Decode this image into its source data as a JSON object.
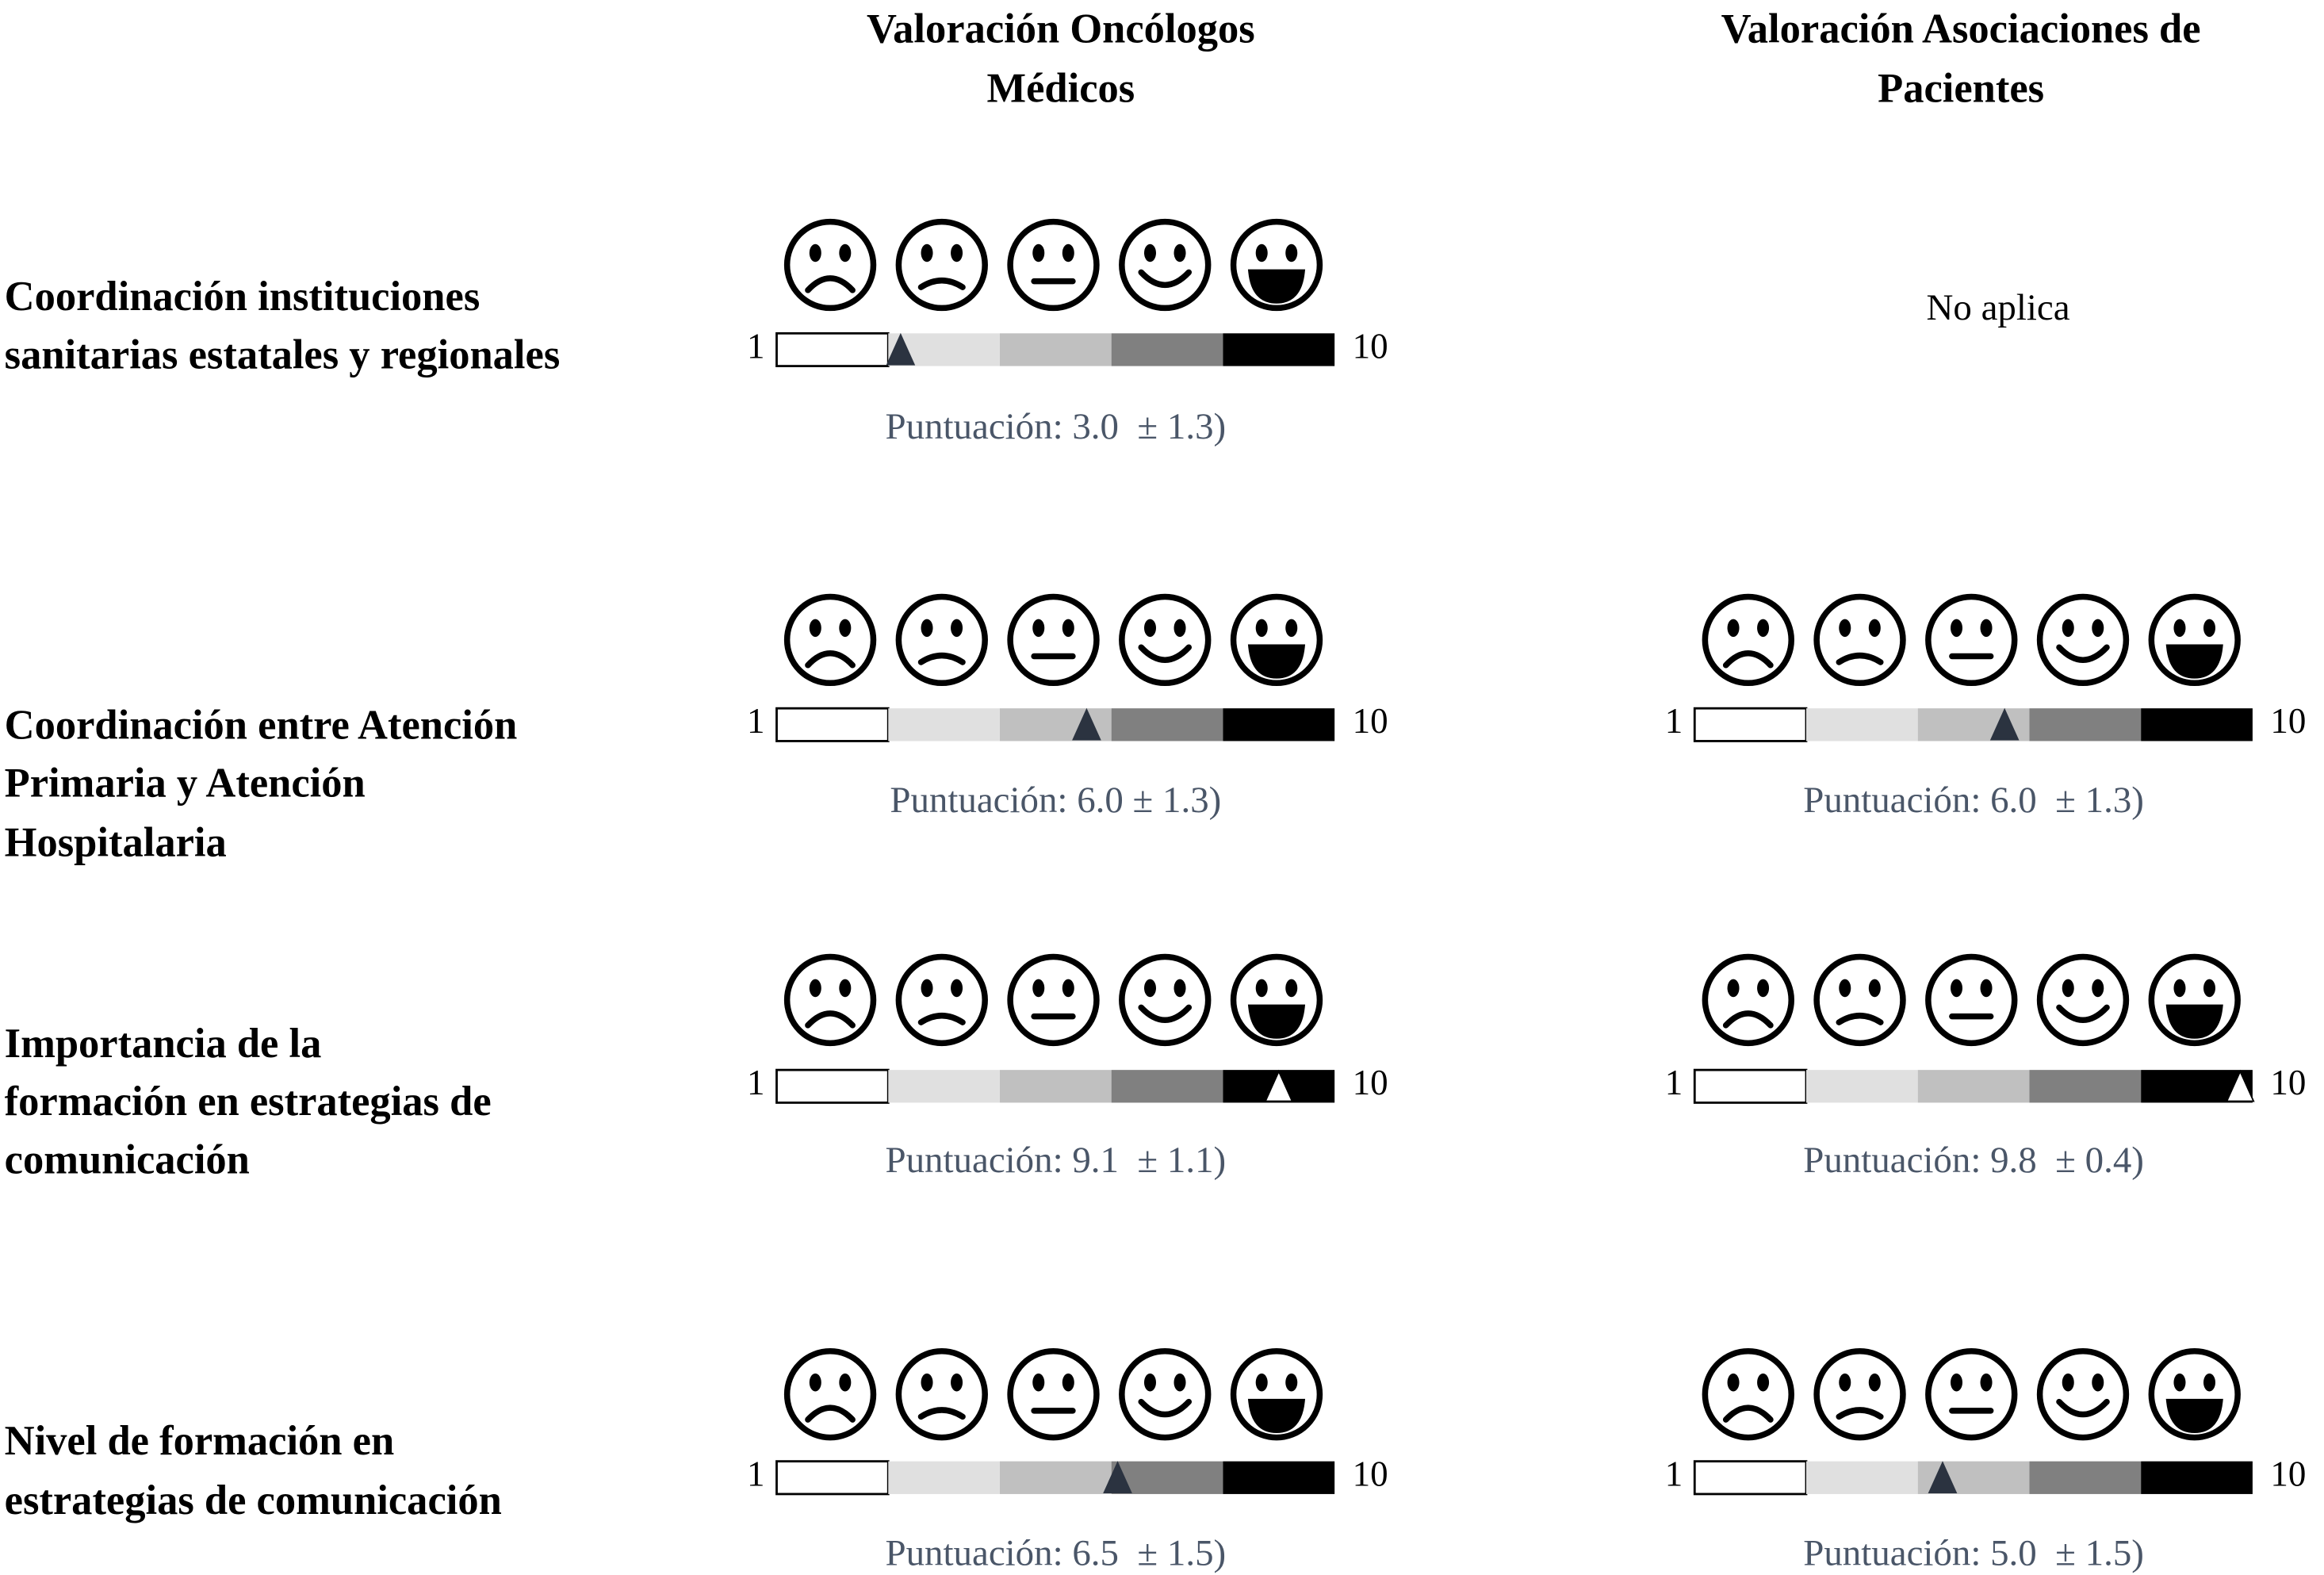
{
  "columns": [
    {
      "title_lines": [
        "Valoración Oncólogos",
        "Médicos"
      ]
    },
    {
      "title_lines": [
        "Valoración Asociaciones de",
        "Pacientes"
      ]
    }
  ],
  "scale": {
    "min": 1,
    "max": 10
  },
  "rows": [
    {
      "label_lines": [
        "Coordinación instituciones",
        "sanitarias estatales y regionales"
      ],
      "cells": [
        {
          "score": 3.0,
          "score_text": "Puntuación: 3.0  ± 1.3)"
        },
        {
          "text": "No aplica"
        }
      ]
    },
    {
      "label_lines": [
        "Coordinación entre Atención",
        "Primaria y Atención",
        "Hospitalaria"
      ],
      "cells": [
        {
          "score": 6.0,
          "score_text": "Puntuación: 6.0 ± 1.3)"
        },
        {
          "score": 6.0,
          "score_text": "Puntuación: 6.0  ± 1.3)"
        }
      ]
    },
    {
      "label_lines": [
        "Importancia de la",
        "formación en estrategias de",
        "comunicación"
      ],
      "cells": [
        {
          "score": 9.1,
          "score_text": "Puntuación: 9.1  ± 1.1)"
        },
        {
          "score": 9.8,
          "score_text": "Puntuación: 9.8  ± 0.4)"
        }
      ]
    },
    {
      "label_lines": [
        "Nivel de formación en",
        "estrategias de comunicación"
      ],
      "cells": [
        {
          "score": 6.5,
          "score_text": "Puntuación: 6.5  ± 1.5)"
        },
        {
          "score": 5.0,
          "score_text": "Puntuación: 5.0  ± 1.5)"
        }
      ]
    }
  ]
}
